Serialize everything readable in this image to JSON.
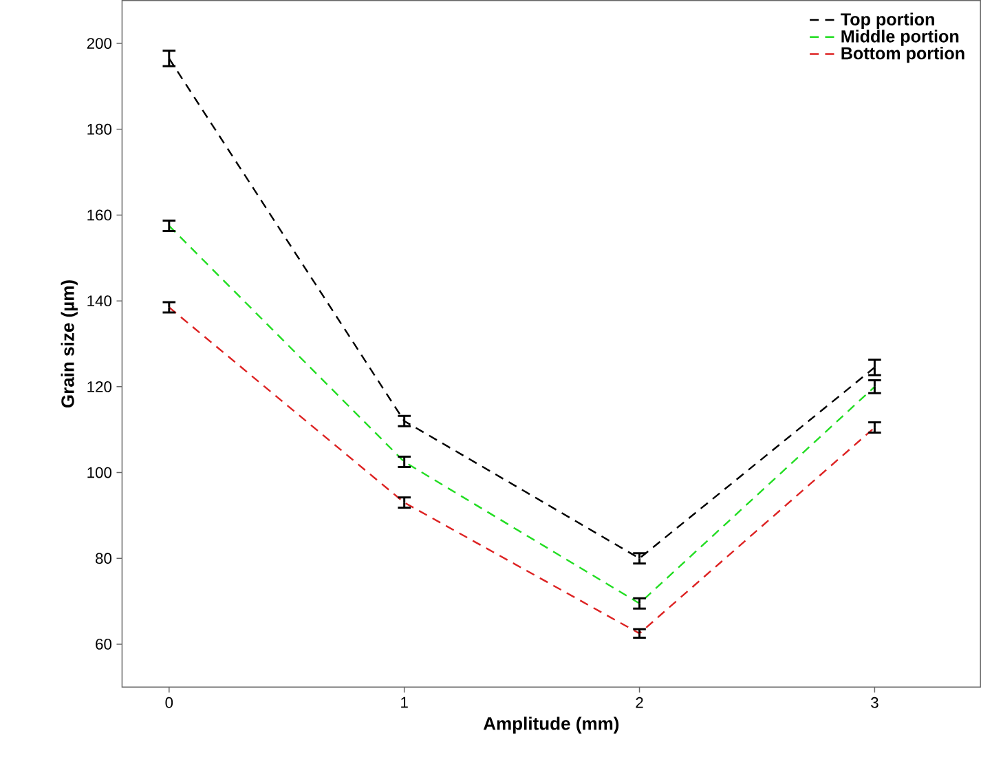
{
  "chart_data": {
    "type": "line",
    "xlabel": "Amplitude (mm)",
    "ylabel": "Grain size (µm)",
    "x": [
      0,
      1,
      2,
      3
    ],
    "xlim": [
      -0.2,
      3.45
    ],
    "xticks": [
      0,
      1,
      2,
      3
    ],
    "ylim": [
      50,
      210
    ],
    "yticks": [
      60,
      80,
      100,
      120,
      140,
      160,
      180,
      200
    ],
    "series": [
      {
        "name": "Top portion",
        "color": "#000000",
        "values": [
          196.5,
          112,
          80,
          124.5
        ],
        "errors": [
          1.8,
          1.2,
          1.2,
          1.8
        ]
      },
      {
        "name": "Middle portion",
        "color": "#22dd22",
        "values": [
          157.5,
          102.5,
          69.5,
          120
        ],
        "errors": [
          1.2,
          1.2,
          1.2,
          1.5
        ]
      },
      {
        "name": "Bottom portion",
        "color": "#dd2222",
        "values": [
          138.5,
          93,
          62.5,
          110.5
        ],
        "errors": [
          1.2,
          1.2,
          1.0,
          1.2
        ]
      }
    ],
    "legend": "top right",
    "line_style": "dashed",
    "marker": "none",
    "grid": false
  }
}
